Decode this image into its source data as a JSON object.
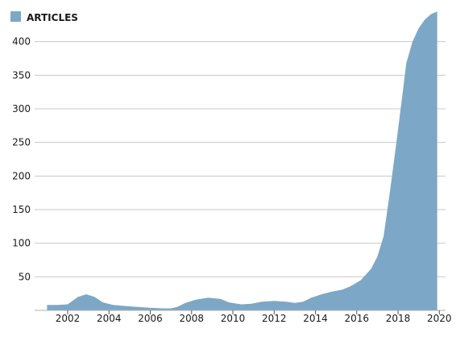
{
  "chart_data": {
    "type": "area",
    "legend": {
      "position": "top-left"
    },
    "series": [
      {
        "name": "ARTICLES",
        "color": "#7da7c6",
        "points": [
          [
            2001.0,
            8
          ],
          [
            2001.5,
            8
          ],
          [
            2002.0,
            9
          ],
          [
            2002.5,
            20
          ],
          [
            2002.9,
            24
          ],
          [
            2003.3,
            20
          ],
          [
            2003.7,
            12
          ],
          [
            2004.2,
            8
          ],
          [
            2005.0,
            6
          ],
          [
            2006.0,
            4
          ],
          [
            2006.6,
            3
          ],
          [
            2007.0,
            3
          ],
          [
            2007.3,
            5
          ],
          [
            2007.7,
            11
          ],
          [
            2008.2,
            16
          ],
          [
            2008.8,
            19
          ],
          [
            2009.4,
            17
          ],
          [
            2009.8,
            12
          ],
          [
            2010.4,
            9
          ],
          [
            2010.9,
            10
          ],
          [
            2011.4,
            13
          ],
          [
            2012.0,
            14
          ],
          [
            2012.6,
            13
          ],
          [
            2013.0,
            11
          ],
          [
            2013.4,
            13
          ],
          [
            2013.8,
            19
          ],
          [
            2014.3,
            24
          ],
          [
            2014.8,
            28
          ],
          [
            2015.3,
            31
          ],
          [
            2015.7,
            36
          ],
          [
            2016.2,
            45
          ],
          [
            2016.7,
            62
          ],
          [
            2017.0,
            80
          ],
          [
            2017.3,
            110
          ],
          [
            2017.6,
            175
          ],
          [
            2017.9,
            245
          ],
          [
            2018.2,
            318
          ],
          [
            2018.4,
            368
          ],
          [
            2018.7,
            400
          ],
          [
            2019.0,
            420
          ],
          [
            2019.3,
            433
          ],
          [
            2019.6,
            441
          ],
          [
            2019.9,
            445
          ]
        ]
      }
    ],
    "xlim": [
      2000.4,
      2020.3
    ],
    "ylim": [
      0,
      450
    ],
    "x_ticks": [
      2002,
      2004,
      2006,
      2008,
      2010,
      2012,
      2014,
      2016,
      2018,
      2020
    ],
    "y_ticks": [
      50,
      100,
      150,
      200,
      250,
      300,
      350,
      400
    ],
    "grid": true,
    "title": "",
    "xlabel": "",
    "ylabel": ""
  }
}
